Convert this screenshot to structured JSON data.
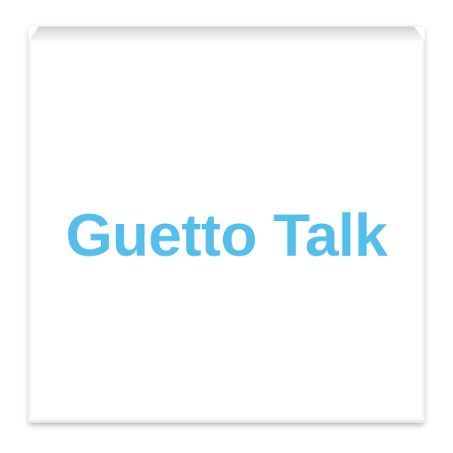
{
  "app": {
    "title": "Guetto Talk"
  },
  "colors": {
    "title_text": "#55bfec"
  }
}
